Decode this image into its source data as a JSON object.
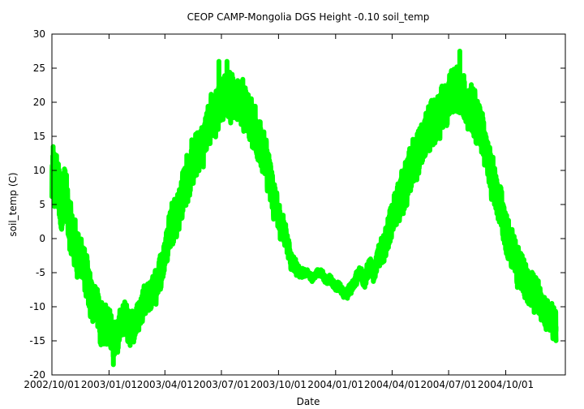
{
  "chart_data": {
    "type": "line",
    "title": "CEOP CAMP-Mongolia DGS Height -0.10 soil_temp",
    "xlabel": "Date",
    "ylabel": "soil_temp (C)",
    "xlim": [
      "2002-10-01",
      "2005-01-05"
    ],
    "ylim": [
      -20,
      30
    ],
    "yticks": [
      -20,
      -15,
      -10,
      -5,
      0,
      5,
      10,
      15,
      20,
      25,
      30
    ],
    "xticks": [
      {
        "date": "2002-10-01",
        "label": "2002/10/01"
      },
      {
        "date": "2003-01-01",
        "label": "2003/01/01"
      },
      {
        "date": "2003-04-01",
        "label": "2003/04/01"
      },
      {
        "date": "2003-07-01",
        "label": "2003/07/01"
      },
      {
        "date": "2003-10-01",
        "label": "2003/10/01"
      },
      {
        "date": "2004-01-01",
        "label": "2004/01/01"
      },
      {
        "date": "2004-04-01",
        "label": "2004/04/01"
      },
      {
        "date": "2004-07-01",
        "label": "2004/07/01"
      },
      {
        "date": "2004-10-01",
        "label": "2004/10/01"
      }
    ],
    "grid": false,
    "legend": "none",
    "series": [
      {
        "color": "#00ff00",
        "points": [
          [
            "2002-10-01",
            8
          ],
          [
            "2002-10-08",
            9
          ],
          [
            "2002-10-15",
            5
          ],
          [
            "2002-10-22",
            7
          ],
          [
            "2002-10-29",
            2
          ],
          [
            "2002-11-05",
            0
          ],
          [
            "2002-11-12",
            -2
          ],
          [
            "2002-11-19",
            -3
          ],
          [
            "2002-11-26",
            -6
          ],
          [
            "2002-12-03",
            -9
          ],
          [
            "2002-12-10",
            -9
          ],
          [
            "2002-12-17",
            -12
          ],
          [
            "2002-12-24",
            -13
          ],
          [
            "2002-12-31",
            -12
          ],
          [
            "2003-01-07",
            -14
          ],
          [
            "2003-01-14",
            -15
          ],
          [
            "2003-01-21",
            -12
          ],
          [
            "2003-01-28",
            -12
          ],
          [
            "2003-02-04",
            -13
          ],
          [
            "2003-02-11",
            -13
          ],
          [
            "2003-02-18",
            -11
          ],
          [
            "2003-02-25",
            -10
          ],
          [
            "2003-03-04",
            -9
          ],
          [
            "2003-03-11",
            -8
          ],
          [
            "2003-03-18",
            -7
          ],
          [
            "2003-03-25",
            -5
          ],
          [
            "2003-04-01",
            -2
          ],
          [
            "2003-04-08",
            1
          ],
          [
            "2003-04-15",
            3
          ],
          [
            "2003-04-22",
            4
          ],
          [
            "2003-04-29",
            6
          ],
          [
            "2003-05-06",
            9
          ],
          [
            "2003-05-13",
            10
          ],
          [
            "2003-05-20",
            12
          ],
          [
            "2003-05-27",
            13
          ],
          [
            "2003-06-03",
            14
          ],
          [
            "2003-06-10",
            17
          ],
          [
            "2003-06-17",
            18
          ],
          [
            "2003-06-24",
            19
          ],
          [
            "2003-07-01",
            20
          ],
          [
            "2003-07-08",
            21
          ],
          [
            "2003-07-15",
            21
          ],
          [
            "2003-07-22",
            21
          ],
          [
            "2003-07-29",
            20
          ],
          [
            "2003-08-05",
            20
          ],
          [
            "2003-08-12",
            19
          ],
          [
            "2003-08-19",
            17
          ],
          [
            "2003-08-26",
            15
          ],
          [
            "2003-09-02",
            14
          ],
          [
            "2003-09-09",
            12
          ],
          [
            "2003-09-16",
            9
          ],
          [
            "2003-09-23",
            6
          ],
          [
            "2003-09-30",
            3
          ],
          [
            "2003-10-07",
            2
          ],
          [
            "2003-10-14",
            0
          ],
          [
            "2003-10-21",
            -3
          ],
          [
            "2003-10-28",
            -4
          ],
          [
            "2003-11-04",
            -5
          ],
          [
            "2003-11-11",
            -5
          ],
          [
            "2003-11-18",
            -5
          ],
          [
            "2003-11-25",
            -6
          ],
          [
            "2003-12-02",
            -5
          ],
          [
            "2003-12-09",
            -5
          ],
          [
            "2003-12-16",
            -6
          ],
          [
            "2003-12-23",
            -6
          ],
          [
            "2003-12-30",
            -7
          ],
          [
            "2004-01-06",
            -7
          ],
          [
            "2004-01-13",
            -8
          ],
          [
            "2004-01-20",
            -8
          ],
          [
            "2004-01-27",
            -7
          ],
          [
            "2004-02-03",
            -6
          ],
          [
            "2004-02-10",
            -5
          ],
          [
            "2004-02-17",
            -6
          ],
          [
            "2004-02-24",
            -4
          ],
          [
            "2004-03-02",
            -5
          ],
          [
            "2004-03-09",
            -3
          ],
          [
            "2004-03-16",
            -2
          ],
          [
            "2004-03-23",
            0
          ],
          [
            "2004-03-30",
            2
          ],
          [
            "2004-04-06",
            4
          ],
          [
            "2004-04-13",
            6
          ],
          [
            "2004-04-20",
            7
          ],
          [
            "2004-04-27",
            9
          ],
          [
            "2004-05-04",
            11
          ],
          [
            "2004-05-11",
            12
          ],
          [
            "2004-05-18",
            14
          ],
          [
            "2004-05-25",
            15
          ],
          [
            "2004-06-01",
            16
          ],
          [
            "2004-06-08",
            17
          ],
          [
            "2004-06-15",
            18
          ],
          [
            "2004-06-22",
            19
          ],
          [
            "2004-06-29",
            20
          ],
          [
            "2004-07-06",
            21
          ],
          [
            "2004-07-13",
            22
          ],
          [
            "2004-07-20",
            21
          ],
          [
            "2004-07-27",
            20
          ],
          [
            "2004-08-03",
            19
          ],
          [
            "2004-08-10",
            18
          ],
          [
            "2004-08-17",
            17
          ],
          [
            "2004-08-24",
            15
          ],
          [
            "2004-08-31",
            12
          ],
          [
            "2004-09-07",
            10
          ],
          [
            "2004-09-14",
            8
          ],
          [
            "2004-09-21",
            5
          ],
          [
            "2004-09-28",
            2
          ],
          [
            "2004-10-05",
            0
          ],
          [
            "2004-10-12",
            -2
          ],
          [
            "2004-10-19",
            -4
          ],
          [
            "2004-10-26",
            -5
          ],
          [
            "2004-11-02",
            -6
          ],
          [
            "2004-11-09",
            -7
          ],
          [
            "2004-11-16",
            -8
          ],
          [
            "2004-11-23",
            -9
          ],
          [
            "2004-11-30",
            -10
          ],
          [
            "2004-12-07",
            -11
          ],
          [
            "2004-12-14",
            -12
          ],
          [
            "2004-12-21",
            -13
          ]
        ],
        "noise": [
          [
            "2002-10-01",
            4
          ],
          [
            "2002-11-15",
            3
          ],
          [
            "2003-01-01",
            2.5
          ],
          [
            "2003-03-15",
            2
          ],
          [
            "2003-05-01",
            3
          ],
          [
            "2003-07-01",
            3
          ],
          [
            "2003-09-15",
            3
          ],
          [
            "2003-10-20",
            1.2
          ],
          [
            "2003-11-15",
            0.4
          ],
          [
            "2004-01-15",
            0.6
          ],
          [
            "2004-03-01",
            1.2
          ],
          [
            "2004-04-15",
            3
          ],
          [
            "2004-07-01",
            3
          ],
          [
            "2004-09-15",
            3
          ],
          [
            "2004-12-21",
            2
          ]
        ],
        "extremes": [
          [
            "2002-10-03",
            13.5
          ],
          [
            "2003-01-08",
            -18.5
          ],
          [
            "2003-06-27",
            26
          ],
          [
            "2003-07-10",
            26
          ],
          [
            "2003-09-18",
            11
          ],
          [
            "2004-07-19",
            27.5
          ],
          [
            "2004-12-21",
            -13.5
          ]
        ]
      }
    ]
  }
}
